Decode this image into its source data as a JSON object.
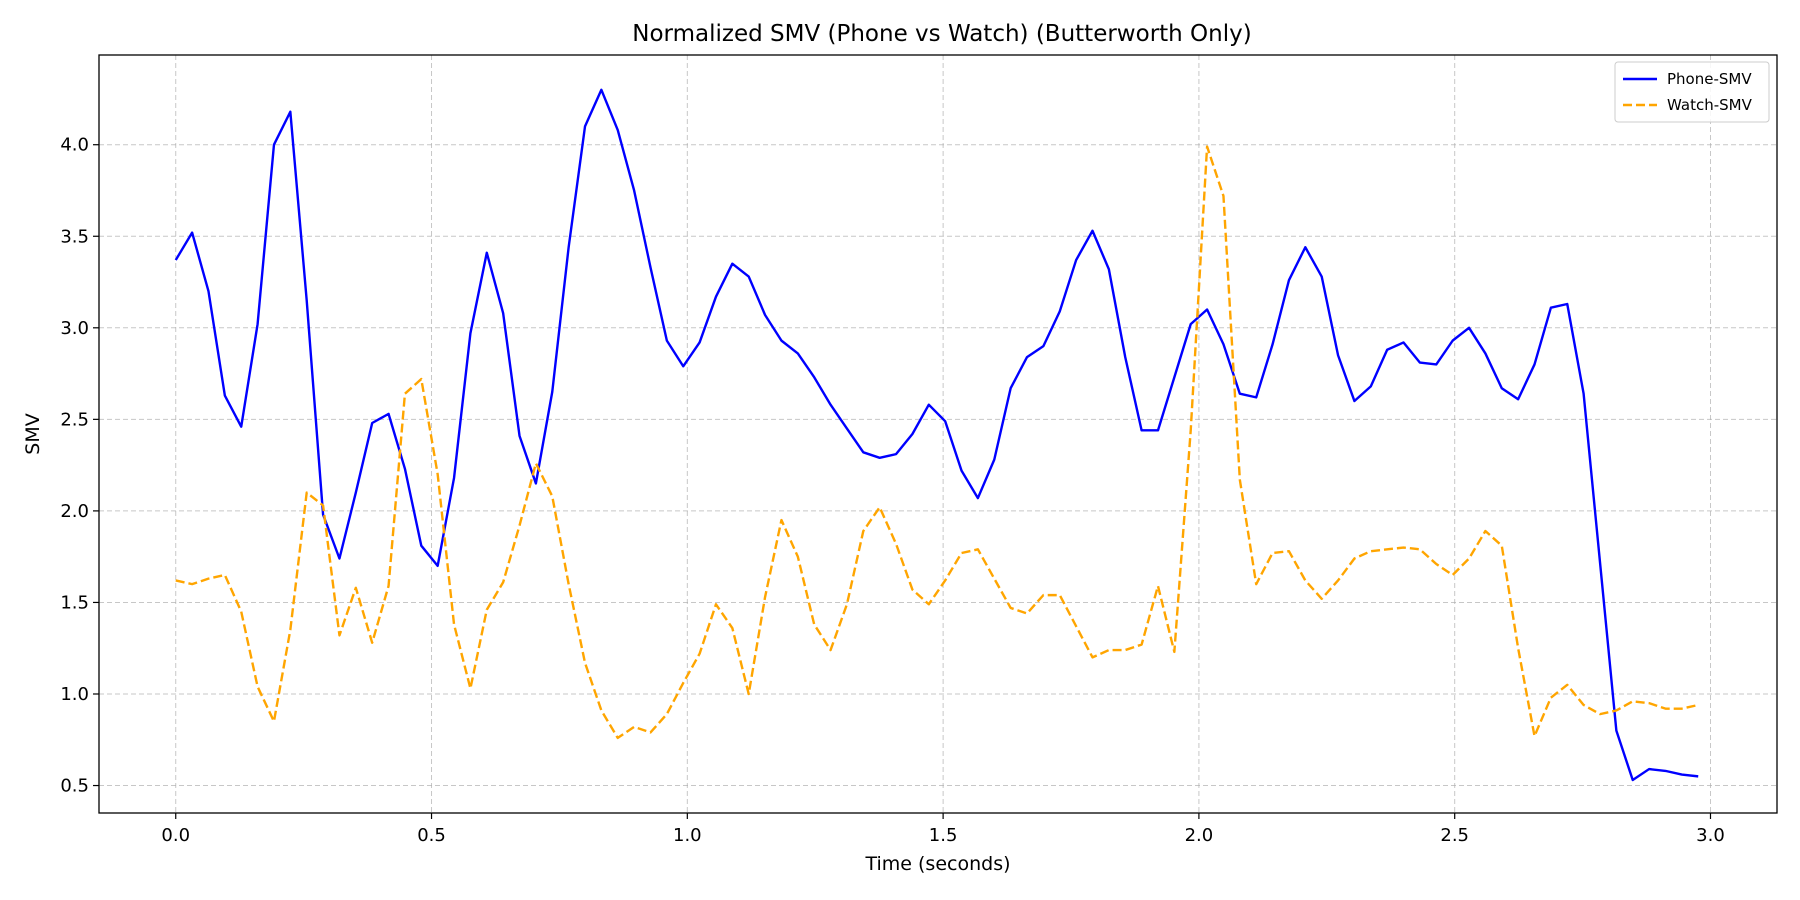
{
  "chart_data": {
    "type": "line",
    "title": "Normalized SMV (Phone vs Watch) (Butterworth Only)",
    "xlabel": "Time (seconds)",
    "ylabel": "SMV",
    "xlim": [
      -0.15,
      3.13
    ],
    "ylim": [
      0.35,
      4.49
    ],
    "xticks": [
      0.0,
      0.5,
      1.0,
      1.5,
      2.0,
      2.5,
      3.0
    ],
    "xtick_labels": [
      "0.0",
      "0.5",
      "1.0",
      "1.5",
      "2.0",
      "2.5",
      "3.0"
    ],
    "yticks": [
      0.5,
      1.0,
      1.5,
      2.0,
      2.5,
      3.0,
      3.5,
      4.0
    ],
    "ytick_labels": [
      "0.5",
      "1.0",
      "1.5",
      "2.0",
      "2.5",
      "3.0",
      "3.5",
      "4.0"
    ],
    "grid": true,
    "legend_position": "top-right",
    "x": [
      0.0,
      0.032,
      0.064,
      0.096,
      0.128,
      0.16,
      0.192,
      0.224,
      0.256,
      0.288,
      0.32,
      0.352,
      0.384,
      0.416,
      0.448,
      0.48,
      0.512,
      0.544,
      0.576,
      0.608,
      0.64,
      0.672,
      0.704,
      0.736,
      0.768,
      0.8,
      0.832,
      0.864,
      0.896,
      0.928,
      0.96,
      0.992,
      1.024,
      1.056,
      1.088,
      1.12,
      1.152,
      1.184,
      1.216,
      1.248,
      1.28,
      1.312,
      1.344,
      1.376,
      1.408,
      1.44,
      1.472,
      1.504,
      1.536,
      1.568,
      1.6,
      1.632,
      1.664,
      1.696,
      1.728,
      1.76,
      1.792,
      1.824,
      1.856,
      1.888,
      1.92,
      1.952,
      1.984,
      2.016,
      2.048,
      2.08,
      2.112,
      2.144,
      2.176,
      2.208,
      2.24,
      2.272,
      2.304,
      2.336,
      2.368,
      2.4,
      2.432,
      2.464,
      2.496,
      2.528,
      2.56,
      2.592,
      2.624,
      2.656,
      2.688,
      2.72,
      2.752,
      2.784,
      2.816,
      2.848,
      2.88,
      2.912,
      2.944,
      2.976
    ],
    "series": [
      {
        "name": "Phone-SMV",
        "color": "#0000ff",
        "style": "solid",
        "values": [
          3.37,
          3.52,
          3.2,
          2.63,
          2.46,
          3.02,
          4.0,
          4.18,
          3.15,
          1.98,
          1.74,
          2.1,
          2.48,
          2.53,
          2.23,
          1.81,
          1.7,
          2.18,
          2.97,
          3.41,
          3.08,
          2.41,
          2.15,
          2.65,
          3.44,
          4.1,
          4.3,
          4.08,
          3.75,
          3.33,
          2.93,
          2.79,
          2.92,
          3.17,
          3.35,
          3.28,
          3.07,
          2.93,
          2.86,
          2.73,
          2.58,
          2.45,
          2.32,
          2.29,
          2.31,
          2.42,
          2.58,
          2.49,
          2.22,
          2.07,
          2.28,
          2.67,
          2.84,
          2.9,
          3.09,
          3.37,
          3.53,
          3.32,
          2.84,
          2.44,
          2.44,
          2.73,
          3.02,
          3.1,
          2.91,
          2.64,
          2.62,
          2.91,
          3.26,
          3.44,
          3.28,
          2.85,
          2.6,
          2.68,
          2.88,
          2.92,
          2.81,
          2.8,
          2.93,
          3.0,
          2.86,
          2.67,
          2.61,
          2.8,
          3.11,
          3.13,
          2.64,
          1.72,
          0.8,
          0.53,
          0.59,
          0.58,
          0.56,
          0.55
        ]
      },
      {
        "name": "Watch-SMV",
        "color": "#ffa500",
        "style": "dashed",
        "values": [
          1.62,
          1.6,
          1.63,
          1.65,
          1.45,
          1.04,
          0.85,
          1.35,
          2.1,
          2.03,
          1.32,
          1.58,
          1.28,
          1.59,
          2.64,
          2.72,
          2.2,
          1.38,
          1.03,
          1.46,
          1.61,
          1.92,
          2.26,
          2.08,
          1.6,
          1.17,
          0.91,
          0.76,
          0.82,
          0.79,
          0.89,
          1.06,
          1.22,
          1.49,
          1.36,
          1.0,
          1.53,
          1.95,
          1.75,
          1.38,
          1.24,
          1.49,
          1.89,
          2.02,
          1.82,
          1.57,
          1.49,
          1.62,
          1.77,
          1.79,
          1.63,
          1.47,
          1.44,
          1.54,
          1.54,
          1.37,
          1.2,
          1.24,
          1.24,
          1.27,
          1.59,
          1.23,
          2.44,
          3.99,
          3.72,
          2.17,
          1.6,
          1.77,
          1.78,
          1.62,
          1.52,
          1.62,
          1.74,
          1.78,
          1.79,
          1.8,
          1.79,
          1.71,
          1.65,
          1.74,
          1.89,
          1.81,
          1.25,
          0.77,
          0.98,
          1.05,
          0.94,
          0.89,
          0.91,
          0.96,
          0.95,
          0.92,
          0.92,
          0.94
        ]
      }
    ]
  }
}
